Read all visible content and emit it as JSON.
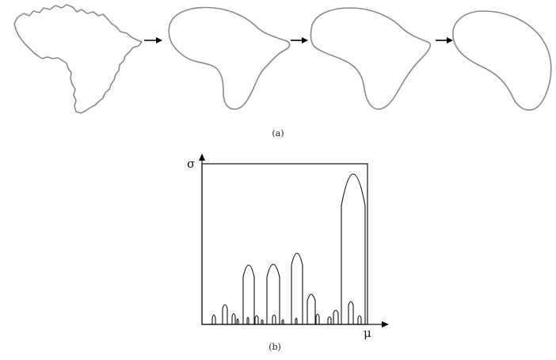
{
  "panel_a": {
    "caption": "(a)"
  },
  "panel_b": {
    "caption": "(b)",
    "y_axis_label": "σ",
    "x_axis_label": "μ"
  },
  "colors": {
    "contour": "#8a8a8a",
    "ink": "#111111"
  }
}
